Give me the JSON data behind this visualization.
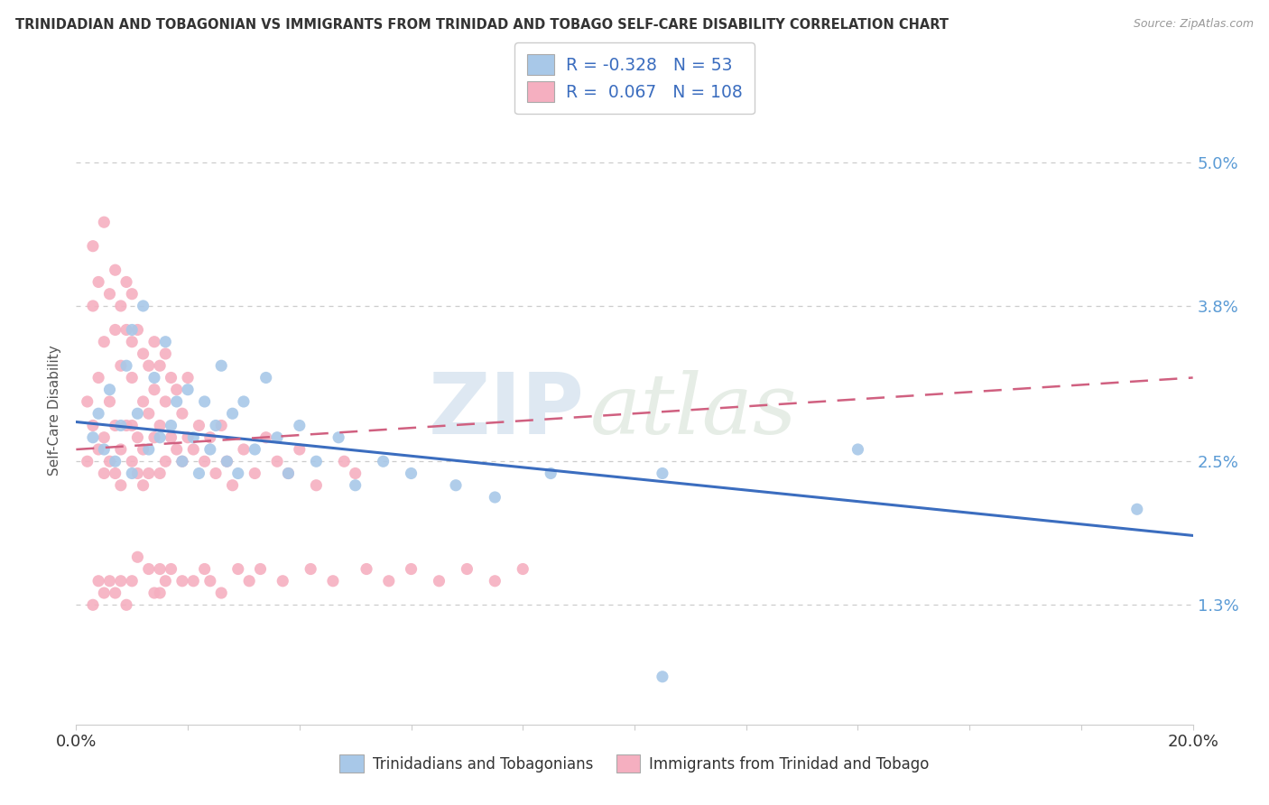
{
  "title": "TRINIDADIAN AND TOBAGONIAN VS IMMIGRANTS FROM TRINIDAD AND TOBAGO SELF-CARE DISABILITY CORRELATION CHART",
  "source": "Source: ZipAtlas.com",
  "ylabel": "Self-Care Disability",
  "xmin": 0.0,
  "xmax": 20.0,
  "ymin": 0.3,
  "ymax": 5.55,
  "yticks": [
    1.3,
    2.5,
    3.8,
    5.0
  ],
  "ytick_labels": [
    "1.3%",
    "2.5%",
    "3.8%",
    "5.0%"
  ],
  "r_blue": -0.328,
  "n_blue": 53,
  "r_pink": 0.067,
  "n_pink": 108,
  "blue_color": "#a8c8e8",
  "pink_color": "#f5afc0",
  "blue_line_color": "#3b6dbf",
  "pink_line_color": "#d06080",
  "legend_label_blue": "Trinidadians and Tobagonians",
  "legend_label_pink": "Immigrants from Trinidad and Tobago",
  "blue_line_x0": 0.0,
  "blue_line_y0": 2.83,
  "blue_line_x1": 20.0,
  "blue_line_y1": 1.88,
  "pink_line_x0": 0.0,
  "pink_line_y0": 2.6,
  "pink_line_x1": 20.0,
  "pink_line_y1": 3.2,
  "blue_scatter_x": [
    0.3,
    0.4,
    0.5,
    0.6,
    0.7,
    0.8,
    0.9,
    1.0,
    1.0,
    1.1,
    1.2,
    1.3,
    1.4,
    1.5,
    1.6,
    1.7,
    1.8,
    1.9,
    2.0,
    2.1,
    2.2,
    2.3,
    2.4,
    2.5,
    2.6,
    2.7,
    2.8,
    2.9,
    3.0,
    3.2,
    3.4,
    3.6,
    3.8,
    4.0,
    4.3,
    4.7,
    5.0,
    5.5,
    6.0,
    6.8,
    7.5,
    8.5,
    10.5,
    14.0,
    19.0,
    10.5
  ],
  "blue_scatter_y": [
    2.7,
    2.9,
    2.6,
    3.1,
    2.5,
    2.8,
    3.3,
    2.4,
    3.6,
    2.9,
    3.8,
    2.6,
    3.2,
    2.7,
    3.5,
    2.8,
    3.0,
    2.5,
    3.1,
    2.7,
    2.4,
    3.0,
    2.6,
    2.8,
    3.3,
    2.5,
    2.9,
    2.4,
    3.0,
    2.6,
    3.2,
    2.7,
    2.4,
    2.8,
    2.5,
    2.7,
    2.3,
    2.5,
    2.4,
    2.3,
    2.2,
    2.4,
    2.4,
    2.6,
    2.1,
    0.7
  ],
  "pink_scatter_x": [
    0.2,
    0.2,
    0.3,
    0.3,
    0.3,
    0.4,
    0.4,
    0.4,
    0.5,
    0.5,
    0.5,
    0.5,
    0.6,
    0.6,
    0.6,
    0.7,
    0.7,
    0.7,
    0.7,
    0.8,
    0.8,
    0.8,
    0.8,
    0.9,
    0.9,
    0.9,
    1.0,
    1.0,
    1.0,
    1.0,
    1.0,
    1.1,
    1.1,
    1.1,
    1.2,
    1.2,
    1.2,
    1.3,
    1.3,
    1.3,
    1.4,
    1.4,
    1.4,
    1.5,
    1.5,
    1.5,
    1.6,
    1.6,
    1.6,
    1.7,
    1.7,
    1.8,
    1.8,
    1.9,
    1.9,
    2.0,
    2.0,
    2.1,
    2.2,
    2.3,
    2.4,
    2.5,
    2.6,
    2.7,
    2.8,
    3.0,
    3.2,
    3.4,
    3.6,
    3.8,
    4.0,
    4.3,
    4.8,
    5.0,
    1.5,
    1.5,
    0.8,
    0.9,
    0.6,
    0.5,
    1.2,
    1.3,
    0.7,
    0.4,
    0.3,
    1.0,
    1.1,
    1.6,
    1.4,
    1.7,
    1.9,
    2.1,
    2.3,
    2.4,
    2.6,
    2.9,
    3.1,
    3.3,
    3.7,
    4.2,
    4.6,
    5.2,
    5.6,
    6.0,
    6.5,
    7.0,
    7.5,
    8.0
  ],
  "pink_scatter_y": [
    3.0,
    2.5,
    2.8,
    3.8,
    4.3,
    3.2,
    2.6,
    4.0,
    3.5,
    2.7,
    4.5,
    2.4,
    3.0,
    3.9,
    2.5,
    2.8,
    3.6,
    4.1,
    2.4,
    3.3,
    2.6,
    3.8,
    2.3,
    3.6,
    2.8,
    4.0,
    3.9,
    3.2,
    2.5,
    2.8,
    3.5,
    3.6,
    2.7,
    2.4,
    3.4,
    2.6,
    3.0,
    2.9,
    3.3,
    2.4,
    3.1,
    2.7,
    3.5,
    2.8,
    3.3,
    2.4,
    3.0,
    2.5,
    3.4,
    2.7,
    3.2,
    2.6,
    3.1,
    2.5,
    2.9,
    2.7,
    3.2,
    2.6,
    2.8,
    2.5,
    2.7,
    2.4,
    2.8,
    2.5,
    2.3,
    2.6,
    2.4,
    2.7,
    2.5,
    2.4,
    2.6,
    2.3,
    2.5,
    2.4,
    1.4,
    1.6,
    1.5,
    1.3,
    1.5,
    1.4,
    2.3,
    1.6,
    1.4,
    1.5,
    1.3,
    1.5,
    1.7,
    1.5,
    1.4,
    1.6,
    1.5,
    1.5,
    1.6,
    1.5,
    1.4,
    1.6,
    1.5,
    1.6,
    1.5,
    1.6,
    1.5,
    1.6,
    1.5,
    1.6,
    1.5,
    1.6,
    1.5,
    1.6
  ]
}
